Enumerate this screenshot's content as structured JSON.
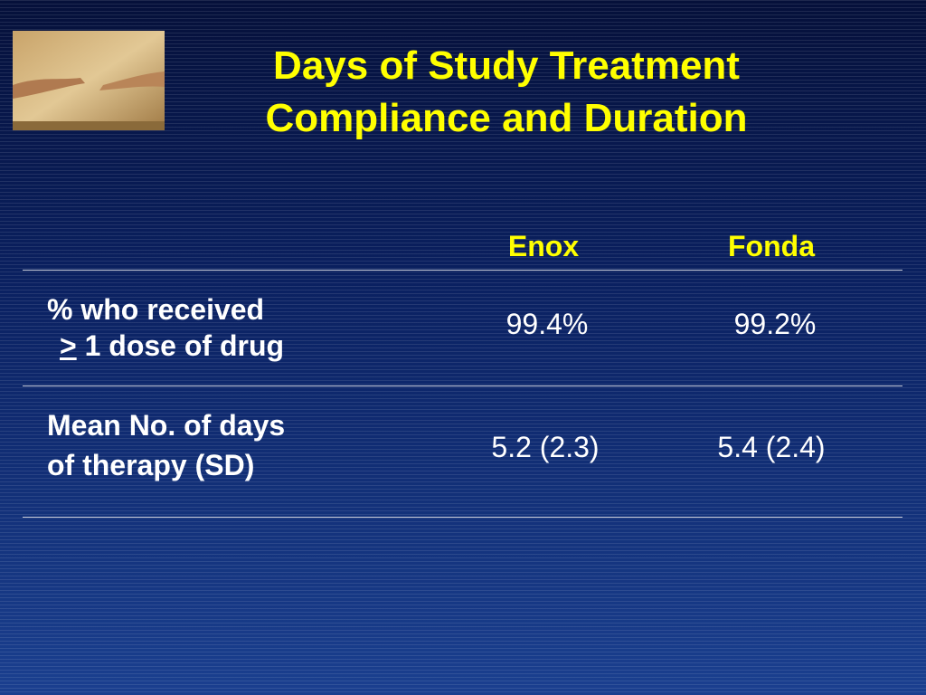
{
  "header": {
    "title_lines": [
      "Days of Study Treatment",
      "Compliance and Duration"
    ]
  },
  "table": {
    "columns": [
      "Enox",
      "Fonda"
    ],
    "rows": [
      {
        "label": {
          "line1": "% who received",
          "symbol": ">",
          "line2": "1 dose of drug"
        },
        "cells": [
          "99.4%",
          "99.2%"
        ]
      },
      {
        "label": {
          "line1": "Mean No. of days",
          "line2": "of therapy (SD)"
        },
        "cells": [
          "5.2 (2.3)",
          "5.4 (2.4)"
        ]
      }
    ]
  }
}
